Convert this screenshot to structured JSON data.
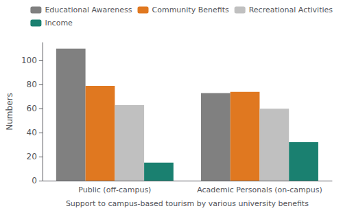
{
  "chart_data": {
    "type": "bar",
    "categories": [
      "Public (off-campus)",
      "Academic Personals (on-campus)"
    ],
    "series": [
      {
        "name": "Educational Awareness",
        "color": "#808080",
        "values": [
          110,
          73
        ]
      },
      {
        "name": "Community Benefits",
        "color": "#E07820",
        "values": [
          79,
          74
        ]
      },
      {
        "name": "Recreational Activities",
        "color": "#C0C0C0",
        "values": [
          63,
          60
        ]
      },
      {
        "name": "Income",
        "color": "#1A8070",
        "values": [
          15,
          32
        ]
      }
    ],
    "xlabel": "Support to campus-based tourism by various university benefits",
    "ylabel": "Numbers",
    "ylim": [
      0,
      115
    ],
    "yticks": [
      0,
      20,
      40,
      60,
      80,
      100
    ],
    "grid": false,
    "legend": "upper right"
  }
}
